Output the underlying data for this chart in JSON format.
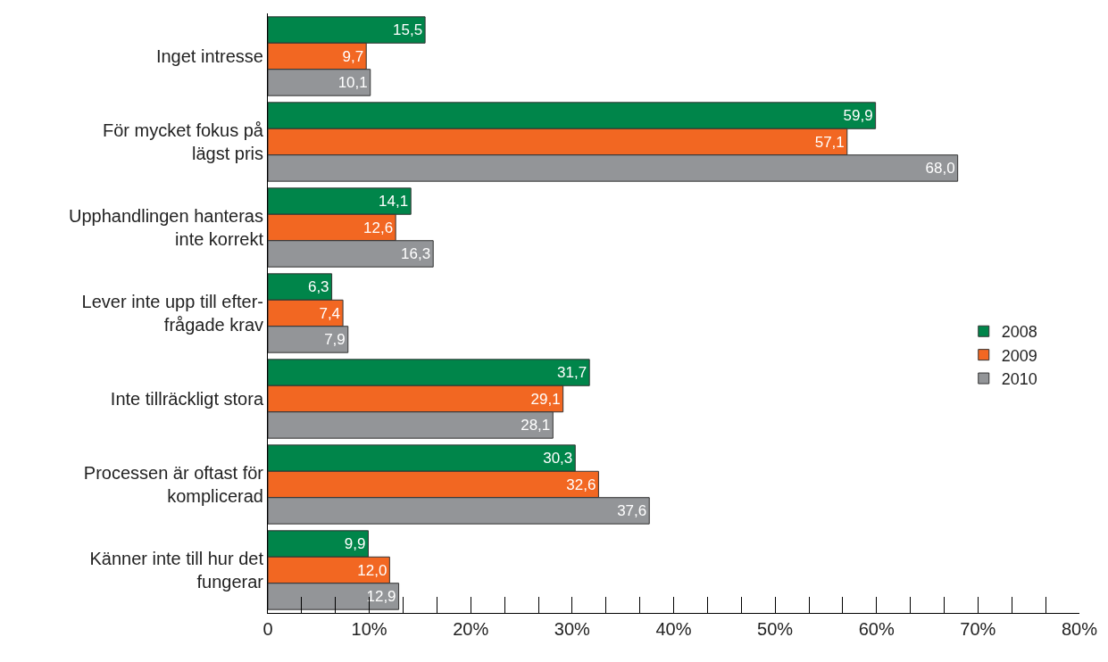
{
  "chart_data": {
    "type": "bar",
    "orientation": "horizontal",
    "categories": [
      "Inget intresse",
      "För mycket fokus på\nlägst pris",
      "Upphandlingen hanteras\ninte korrekt",
      "Lever inte upp till efter-\nfrågade krav",
      "Inte tillräckligt stora",
      "Processen är oftast för\nkomplicerad",
      "Känner inte till hur det\nfungerar"
    ],
    "series": [
      {
        "name": "2008",
        "color": "#00854a",
        "values": [
          15.5,
          59.9,
          14.1,
          6.3,
          31.7,
          30.3,
          9.9
        ],
        "value_labels": [
          "15,5",
          "59,9",
          "14,1",
          "6,3",
          "31,7",
          "30,3",
          "9,9"
        ]
      },
      {
        "name": "2009",
        "color": "#f26722",
        "values": [
          9.7,
          57.1,
          12.6,
          7.4,
          29.1,
          32.6,
          12.0
        ],
        "value_labels": [
          "9,7",
          "57,1",
          "12,6",
          "7,4",
          "29,1",
          "32,6",
          "12,0"
        ]
      },
      {
        "name": "2010",
        "color": "#939598",
        "values": [
          10.1,
          68.0,
          16.3,
          7.9,
          28.1,
          37.6,
          12.9
        ],
        "value_labels": [
          "10,1",
          "68,0",
          "16,3",
          "7,9",
          "28,1",
          "37,6",
          "12,9"
        ]
      }
    ],
    "xlim": [
      0,
      80
    ],
    "xticks": [
      {
        "value": 0,
        "label": "0"
      },
      {
        "value": 10,
        "label": "10%"
      },
      {
        "value": 20,
        "label": "20%"
      },
      {
        "value": 30,
        "label": "30%"
      },
      {
        "value": 40,
        "label": "40%"
      },
      {
        "value": 50,
        "label": "50%"
      },
      {
        "value": 60,
        "label": "60%"
      },
      {
        "value": 70,
        "label": "70%"
      },
      {
        "value": 80,
        "label": "80%"
      }
    ],
    "legend": "right"
  }
}
